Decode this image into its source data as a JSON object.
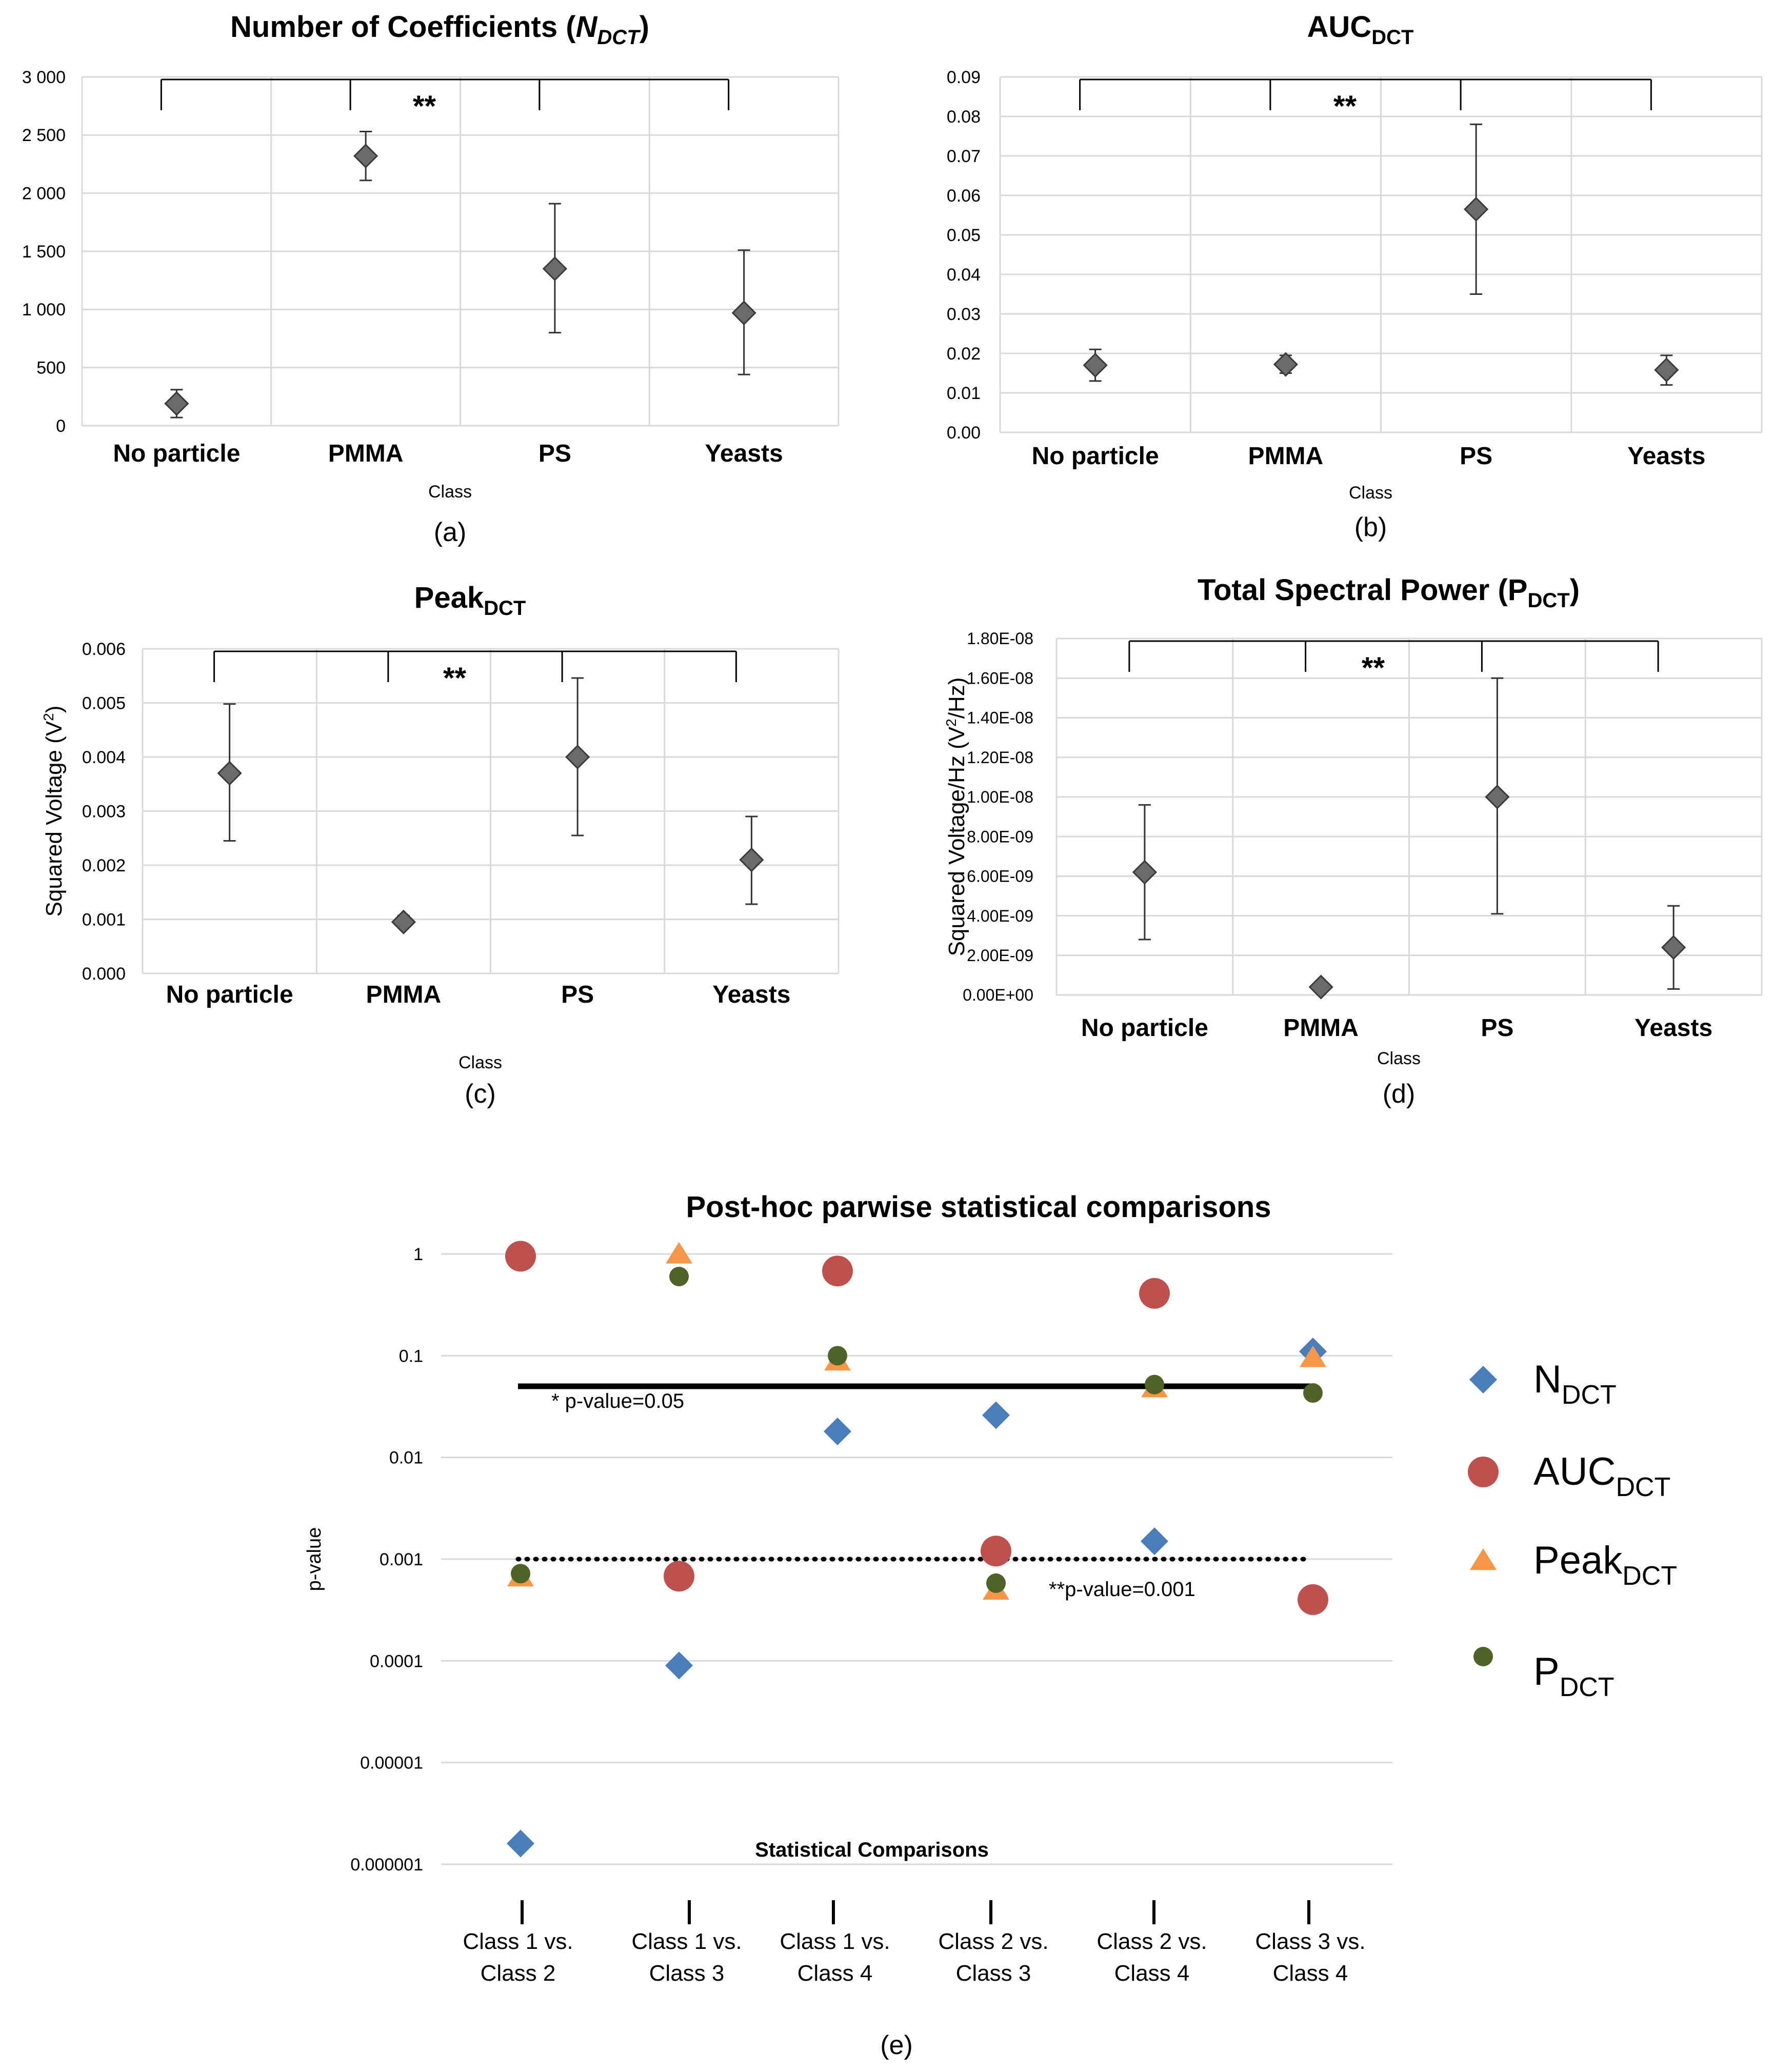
{
  "chart_data": [
    {
      "id": "a",
      "type": "scatter",
      "title_main": "Number of Coefficients (",
      "title_sym": "N",
      "title_sub": "DCT",
      "title_end": ")",
      "title_italic": true,
      "categories": [
        "No particle",
        "PMMA",
        "PS",
        "Yeasts"
      ],
      "values": [
        190,
        2320,
        1350,
        970
      ],
      "err_low": [
        70,
        2110,
        800,
        440
      ],
      "err_high": [
        310,
        2530,
        1910,
        1510
      ],
      "ylim": [
        0,
        3000
      ],
      "yticks": [
        "0",
        "500",
        "1 000",
        "1 500",
        "2 000",
        "2 500",
        "3 000"
      ],
      "xlabel": "Class",
      "ylabel": "",
      "ylabel_sup": "",
      "ylabel_end": "",
      "significance": "**",
      "panel_label": "(a)"
    },
    {
      "id": "b",
      "type": "scatter",
      "title_main": "AUC",
      "title_sym": "",
      "title_sub": "DCT",
      "title_end": "",
      "title_italic": false,
      "categories": [
        "No particle",
        "PMMA",
        "PS",
        "Yeasts"
      ],
      "values": [
        0.017,
        0.0172,
        0.0565,
        0.0158
      ],
      "err_low": [
        0.013,
        0.015,
        0.035,
        0.012
      ],
      "err_high": [
        0.021,
        0.0195,
        0.078,
        0.0195
      ],
      "ylim": [
        0,
        0.09
      ],
      "yticks": [
        "0.00",
        "0.01",
        "0.02",
        "0.03",
        "0.04",
        "0.05",
        "0.06",
        "0.07",
        "0.08",
        "0.09"
      ],
      "xlabel": "Class",
      "ylabel": "",
      "ylabel_sup": "",
      "ylabel_end": "",
      "significance": "**",
      "panel_label": "(b)"
    },
    {
      "id": "c",
      "type": "scatter",
      "title_main": "Peak",
      "title_sym": "",
      "title_sub": "DCT",
      "title_end": "",
      "title_italic": false,
      "categories": [
        "No particle",
        "PMMA",
        "PS",
        "Yeasts"
      ],
      "values": [
        0.0037,
        0.00095,
        0.004,
        0.0021
      ],
      "err_low": [
        0.00245,
        0.00085,
        0.00255,
        0.00128
      ],
      "err_high": [
        0.00498,
        0.00107,
        0.00546,
        0.0029
      ],
      "ylim": [
        0,
        0.006
      ],
      "yticks": [
        "0.000",
        "0.001",
        "0.002",
        "0.003",
        "0.004",
        "0.005",
        "0.006"
      ],
      "xlabel": "Class",
      "ylabel": "Squared Voltage (V",
      "ylabel_sup": "2",
      "ylabel_end": ")",
      "significance": "**",
      "panel_label": "(c)"
    },
    {
      "id": "d",
      "type": "scatter",
      "title_main": "Total Spectral Power (P",
      "title_sym": "",
      "title_sub": "DCT",
      "title_end": ")",
      "title_italic": false,
      "categories": [
        "No particle",
        "PMMA",
        "PS",
        "Yeasts"
      ],
      "values": [
        6.2e-09,
        4e-10,
        1e-08,
        2.4e-09
      ],
      "err_low": [
        2.8e-09,
        3e-10,
        4.1e-09,
        3e-10
      ],
      "err_high": [
        9.6e-09,
        5e-10,
        1.6e-08,
        4.5e-09
      ],
      "ylim": [
        0,
        1.8e-08
      ],
      "yticks": [
        "0.00E+00",
        "2.00E-09",
        "4.00E-09",
        "6.00E-09",
        "8.00E-09",
        "1.00E-08",
        "1.20E-08",
        "1.40E-08",
        "1.60E-08",
        "1.80E-08"
      ],
      "xlabel": "Class",
      "ylabel": "Squared Voltage/Hz (V",
      "ylabel_sup": "2",
      "ylabel_end": "/Hz)",
      "significance": "**",
      "panel_label": "(d)"
    },
    {
      "id": "e",
      "type": "scatter",
      "yscale": "log",
      "title": "Post-hoc parwise statistical comparisons",
      "ylabel": "p-value",
      "xlabel": "Statistical Comparisons",
      "categories": [
        [
          "Class 1 vs.",
          "Class 2"
        ],
        [
          "Class 1 vs.",
          "Class 3"
        ],
        [
          "Class 1 vs.",
          "Class 4"
        ],
        [
          "Class 2 vs.",
          "Class 3"
        ],
        [
          "Class 2 vs.",
          "Class 4"
        ],
        [
          "Class 3 vs.",
          "Class 4"
        ]
      ],
      "yticks": [
        "0.000001",
        "0.00001",
        "0.0001",
        "0.001",
        "0.01",
        "0.1",
        "1"
      ],
      "ylim": [
        1e-06,
        1
      ],
      "series": [
        {
          "name": "N",
          "sub": "DCT",
          "marker": "diamond",
          "color": "#4a7ebb",
          "values": [
            1.6e-06,
            9e-05,
            0.018,
            0.026,
            0.0015,
            0.11
          ]
        },
        {
          "name": "AUC",
          "sub": "DCT",
          "marker": "circle",
          "color": "#c0504d",
          "values": [
            0.95,
            0.00068,
            0.68,
            0.0012,
            0.41,
            0.0004
          ]
        },
        {
          "name": "Peak",
          "sub": "DCT",
          "marker": "triangle",
          "color": "#f79646",
          "values": [
            0.00065,
            0.97,
            0.086,
            0.00048,
            0.047,
            0.093
          ]
        },
        {
          "name": "P",
          "sub": "DCT",
          "marker": "circle-small",
          "color": "#4f6228",
          "values": [
            0.00072,
            0.6,
            0.1,
            0.00058,
            0.052,
            0.043
          ]
        }
      ],
      "thresholds": [
        {
          "value": 0.05,
          "style": "solid",
          "label": "* p-value=0.05"
        },
        {
          "value": 0.001,
          "style": "dotted",
          "label": "**p-value=0.001"
        }
      ],
      "panel_label": "(e)"
    }
  ]
}
